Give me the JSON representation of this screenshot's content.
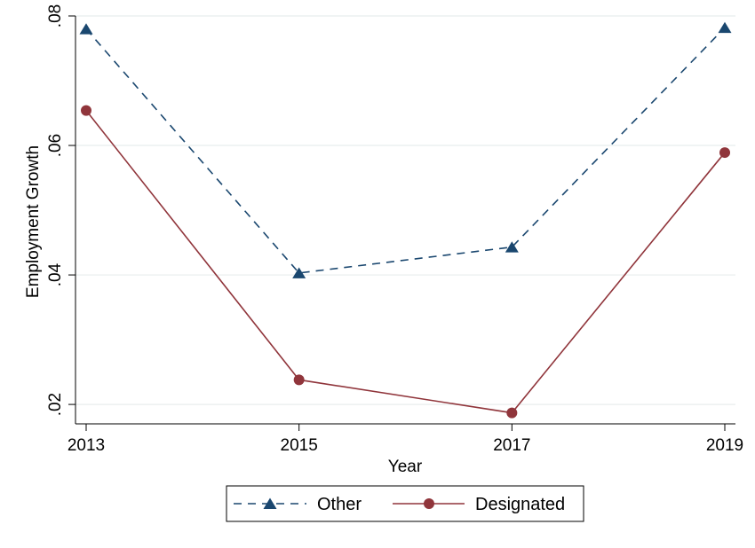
{
  "chart_data": {
    "type": "line",
    "xlabel": "Year",
    "ylabel": "Employment Growth",
    "x": [
      2013,
      2015,
      2017,
      2019
    ],
    "xlim": [
      2013,
      2019
    ],
    "ylim": [
      0.017,
      0.08
    ],
    "y_ticks": [
      0.02,
      0.04,
      0.06,
      0.08
    ],
    "y_tick_labels": [
      ".02",
      ".04",
      ".06",
      ".08"
    ],
    "x_tick_labels": [
      "2013",
      "2015",
      "2017",
      "2019"
    ],
    "grid": "horizontal",
    "legend_position": "bottom",
    "series": [
      {
        "name": "Other",
        "values": [
          0.078,
          0.0403,
          0.0443,
          0.0782
        ],
        "color": "#1a476f",
        "marker": "triangle",
        "line_style": "dashed"
      },
      {
        "name": "Designated",
        "values": [
          0.0654,
          0.0238,
          0.0187,
          0.0589
        ],
        "color": "#90353b",
        "marker": "circle",
        "line_style": "solid"
      }
    ]
  }
}
